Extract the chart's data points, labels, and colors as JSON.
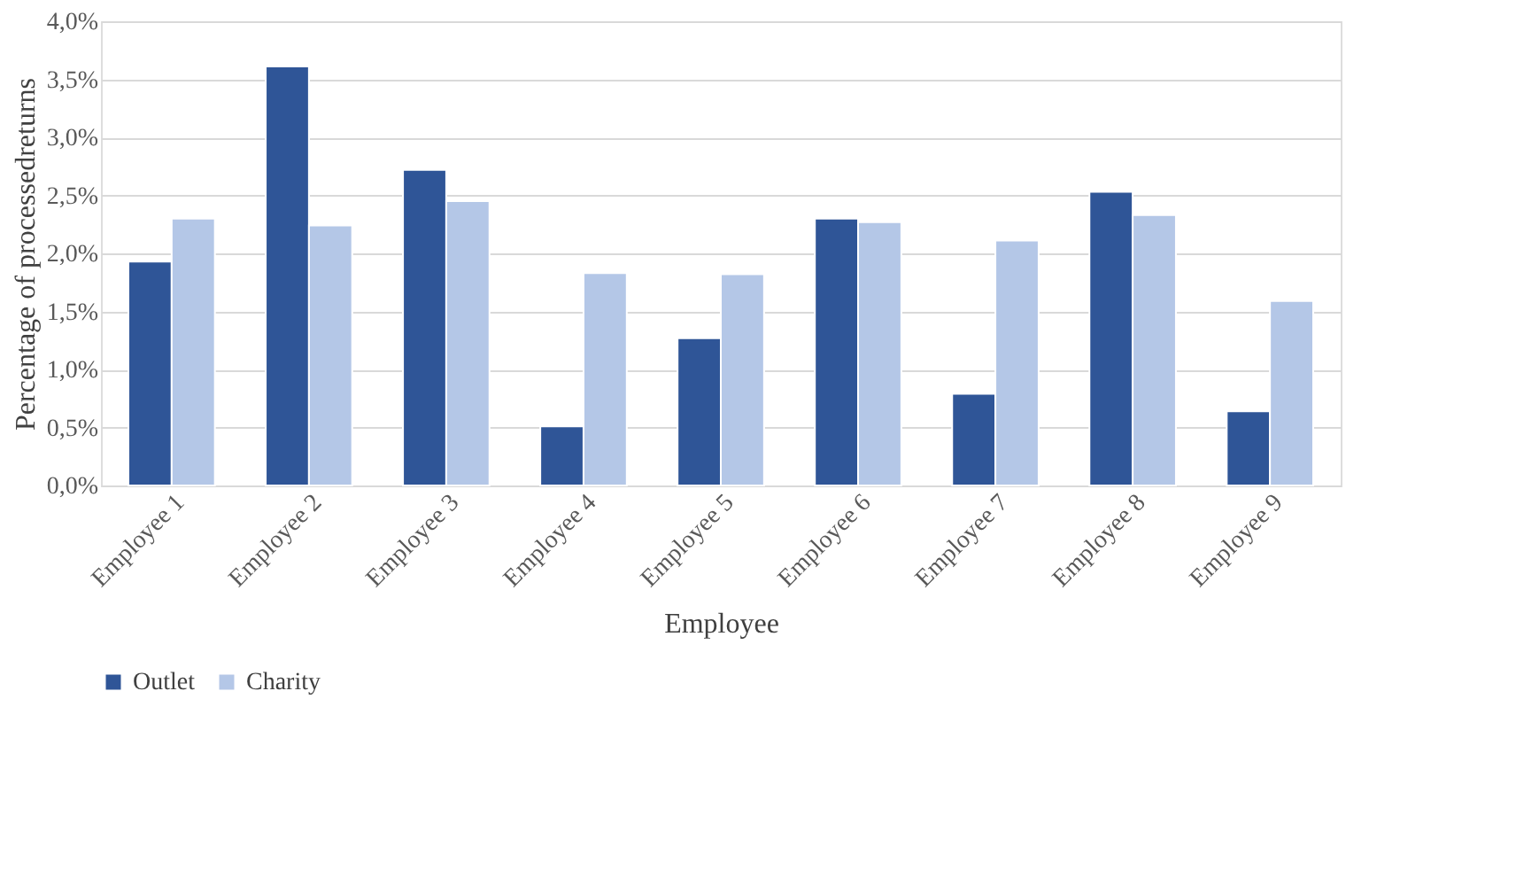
{
  "chart_data": {
    "type": "bar",
    "xlabel": "Employee",
    "ylabel": "Percentage of processedreturns",
    "categories": [
      "Employee 1",
      "Employee 2",
      "Employee 3",
      "Employee 4",
      "Employee 5",
      "Employee 6",
      "Employee 7",
      "Employee 8",
      "Employee 9"
    ],
    "series": [
      {
        "name": "Outlet",
        "color": "#2f5597",
        "values": [
          1.93,
          3.61,
          2.72,
          0.51,
          1.27,
          2.3,
          0.79,
          2.53,
          0.64
        ]
      },
      {
        "name": "Charity",
        "color": "#b4c7e7",
        "values": [
          2.3,
          2.24,
          2.45,
          1.83,
          1.82,
          2.27,
          2.11,
          2.33,
          1.59
        ]
      }
    ],
    "ylim": [
      0,
      4
    ],
    "yticks": [
      {
        "value": 0,
        "label": "0,0%"
      },
      {
        "value": 0.5,
        "label": "0,5%"
      },
      {
        "value": 1,
        "label": "1,0%"
      },
      {
        "value": 1.5,
        "label": "1,5%"
      },
      {
        "value": 2,
        "label": "2,0%"
      },
      {
        "value": 2.5,
        "label": "2,5%"
      },
      {
        "value": 3,
        "label": "3,0%"
      },
      {
        "value": 3.5,
        "label": "3,5%"
      },
      {
        "value": 4,
        "label": "4,0%"
      }
    ],
    "grid": "y",
    "legend": "bottom"
  }
}
